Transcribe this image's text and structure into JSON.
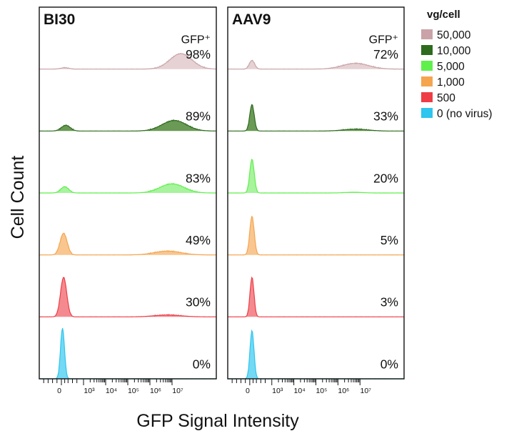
{
  "chart_data": {
    "type": "area",
    "chart_kind": "stacked flow-cytometry histograms",
    "ylabel": "Cell Count",
    "xlabel": "GFP Signal Intensity",
    "x_scale": "biexponential (log above 10^3)",
    "x_tick_labels": [
      "0",
      "10³",
      "10⁴",
      "10⁵",
      "10⁶",
      "10⁷"
    ],
    "gfp_label": "GFP⁺",
    "legend": {
      "title": "vg/cell",
      "placement": "top-right",
      "entries": [
        {
          "label": "50,000",
          "color": "#c9a3a8"
        },
        {
          "label": "10,000",
          "color": "#2e6b1e"
        },
        {
          "label": "5,000",
          "color": "#5ff04c"
        },
        {
          "label": "1,000",
          "color": "#f5a54e"
        },
        {
          "label": "500",
          "color": "#ee3d45"
        },
        {
          "label": "0 (no virus)",
          "color": "#2ec5ee"
        }
      ]
    },
    "panels": [
      {
        "title": "BI30",
        "percent_gfp_positive": [
          "98%",
          "89%",
          "83%",
          "49%",
          "30%",
          "0%"
        ],
        "series": [
          {
            "dose": "50,000",
            "fill": "#e6d2d4",
            "stroke": "#c9a3a8",
            "peaks": [
              {
                "center": 0.15,
                "width": 0.18,
                "height": 0.03
              },
              {
                "center": 5.4,
                "width": 0.5,
                "height": 0.32
              }
            ]
          },
          {
            "dose": "10,000",
            "fill": "#6a9a55",
            "stroke": "#2e6b1e",
            "peaks": [
              {
                "center": 0.2,
                "width": 0.2,
                "height": 0.12
              },
              {
                "center": 5.1,
                "width": 0.55,
                "height": 0.22
              }
            ]
          },
          {
            "dose": "5,000",
            "fill": "#a8f39e",
            "stroke": "#5ff04c",
            "peaks": [
              {
                "center": 0.15,
                "width": 0.18,
                "height": 0.13
              },
              {
                "center": 5.0,
                "width": 0.55,
                "height": 0.19
              }
            ]
          },
          {
            "dose": "1,000",
            "fill": "#f9c690",
            "stroke": "#f5a54e",
            "peaks": [
              {
                "center": 0.1,
                "width": 0.16,
                "height": 0.45
              },
              {
                "center": 4.8,
                "width": 0.6,
                "height": 0.08
              }
            ]
          },
          {
            "dose": "500",
            "fill": "#f48a90",
            "stroke": "#ee3d45",
            "peaks": [
              {
                "center": 0.1,
                "width": 0.14,
                "height": 0.82
              },
              {
                "center": 4.8,
                "width": 0.6,
                "height": 0.04
              }
            ]
          },
          {
            "dose": "0 (no virus)",
            "fill": "#74d9f4",
            "stroke": "#2ec5ee",
            "peaks": [
              {
                "center": 0.05,
                "width": 0.09,
                "height": 1.05
              }
            ]
          }
        ]
      },
      {
        "title": "AAV9",
        "percent_gfp_positive": [
          "72%",
          "33%",
          "20%",
          "5%",
          "3%",
          "0%"
        ],
        "series": [
          {
            "dose": "50,000",
            "fill": "#e6d2d4",
            "stroke": "#c9a3a8",
            "peaks": [
              {
                "center": 0.1,
                "width": 0.12,
                "height": 0.18
              },
              {
                "center": 4.8,
                "width": 0.6,
                "height": 0.12
              }
            ]
          },
          {
            "dose": "10,000",
            "fill": "#6a9a55",
            "stroke": "#2e6b1e",
            "peaks": [
              {
                "center": 0.1,
                "width": 0.1,
                "height": 0.55
              },
              {
                "center": 4.8,
                "width": 0.55,
                "height": 0.04
              }
            ]
          },
          {
            "dose": "5,000",
            "fill": "#a8f39e",
            "stroke": "#5ff04c",
            "peaks": [
              {
                "center": 0.1,
                "width": 0.1,
                "height": 0.7
              },
              {
                "center": 4.7,
                "width": 0.4,
                "height": 0.015
              }
            ]
          },
          {
            "dose": "1,000",
            "fill": "#f9c690",
            "stroke": "#f5a54e",
            "peaks": [
              {
                "center": 0.1,
                "width": 0.1,
                "height": 0.8
              }
            ]
          },
          {
            "dose": "500",
            "fill": "#f48a90",
            "stroke": "#ee3d45",
            "peaks": [
              {
                "center": 0.1,
                "width": 0.09,
                "height": 0.82
              }
            ]
          },
          {
            "dose": "0 (no virus)",
            "fill": "#74d9f4",
            "stroke": "#2ec5ee",
            "peaks": [
              {
                "center": 0.1,
                "width": 0.09,
                "height": 1.0
              }
            ]
          }
        ]
      }
    ]
  }
}
